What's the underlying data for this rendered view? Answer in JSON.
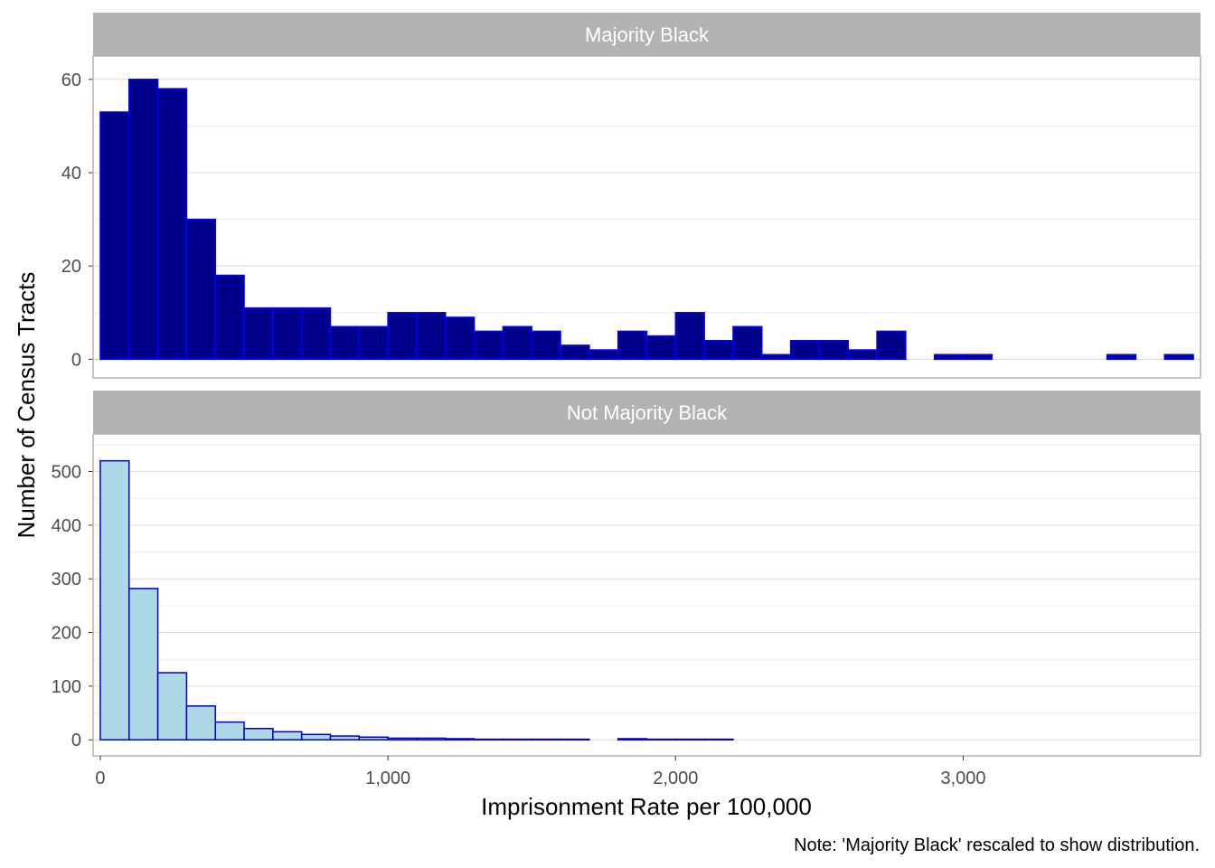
{
  "chart_data": {
    "type": "bar",
    "subtype": "faceted-histogram",
    "xlabel": "Imprisonment Rate per 100,000",
    "ylabel": "Number of Census Tracts",
    "caption": "Note: 'Majority Black' rescaled to show distribution.",
    "x_ticks": [
      0,
      1000,
      2000,
      3000
    ],
    "x_tick_labels": [
      "0",
      "1,000",
      "2,000",
      "3,000"
    ],
    "xlim": [
      -25,
      3825
    ],
    "bin_width": 100,
    "bin_start": 0,
    "grid": true,
    "panels": [
      {
        "name": "Majority Black",
        "fill": "#00008b",
        "stroke": "#0000ff",
        "ylim": [
          -4,
          65
        ],
        "y_ticks": [
          0,
          20,
          40,
          60
        ],
        "y_tick_labels": [
          "0",
          "20",
          "40",
          "60"
        ],
        "values": [
          53,
          60,
          58,
          30,
          18,
          11,
          11,
          11,
          7,
          7,
          10,
          10,
          9,
          6,
          7,
          6,
          3,
          2,
          6,
          5,
          10,
          4,
          7,
          1,
          4,
          4,
          2,
          6,
          0,
          1,
          1,
          0,
          0,
          0,
          0,
          1,
          0,
          1
        ]
      },
      {
        "name": "Not Majority Black",
        "fill": "#add8e6",
        "stroke": "#0000cd",
        "ylim": [
          -30,
          570
        ],
        "y_ticks": [
          0,
          100,
          200,
          300,
          400,
          500
        ],
        "y_tick_labels": [
          "0",
          "100",
          "200",
          "300",
          "400",
          "500"
        ],
        "values": [
          520,
          282,
          125,
          63,
          33,
          21,
          15,
          10,
          7,
          5,
          3,
          3,
          2,
          1,
          1,
          1,
          1,
          0,
          2,
          1,
          1,
          1,
          0,
          0,
          0,
          0,
          0,
          0,
          0,
          0,
          0,
          0,
          0,
          0,
          0,
          0,
          0,
          0
        ]
      }
    ]
  }
}
